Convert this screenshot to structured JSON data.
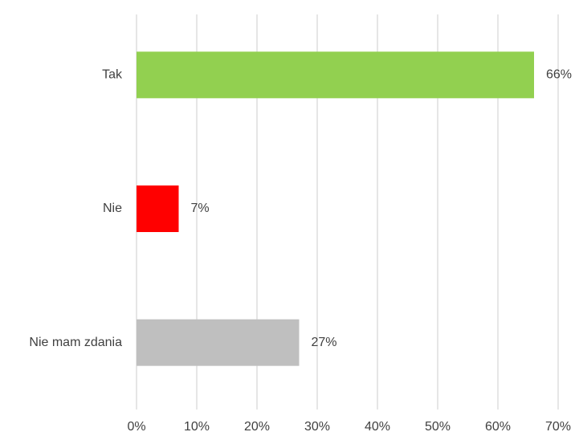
{
  "chart_data": {
    "type": "hbar",
    "categories": [
      "Tak",
      "Nie",
      "Nie mam zdania"
    ],
    "values": [
      66,
      7,
      27
    ],
    "value_labels": [
      "66%",
      "7%",
      "27%"
    ],
    "colors": [
      "#92d050",
      "#ff0000",
      "#bfbfbf"
    ],
    "xlim": [
      0,
      70
    ],
    "xticks": [
      {
        "value": 0,
        "label": "0%"
      },
      {
        "value": 10,
        "label": "10%"
      },
      {
        "value": 20,
        "label": "20%"
      },
      {
        "value": 30,
        "label": "30%"
      },
      {
        "value": 40,
        "label": "40%"
      },
      {
        "value": 50,
        "label": "50%"
      },
      {
        "value": 60,
        "label": "60%"
      },
      {
        "value": 70,
        "label": "70%"
      }
    ],
    "grid": true
  }
}
